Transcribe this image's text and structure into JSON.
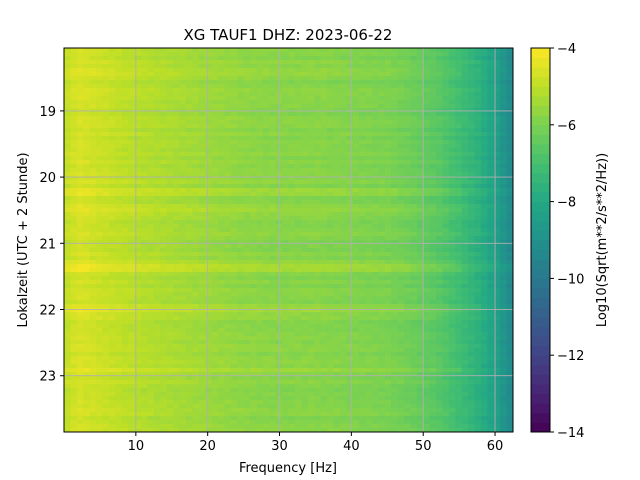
{
  "chart_data": {
    "type": "heatmap",
    "title": "XG TAUF1  DHZ: 2023-06-22",
    "xlabel": "Frequency [Hz]",
    "ylabel": "Lokalzeit (UTC + 2 Stunde)",
    "xlim": [
      0,
      62.5
    ],
    "ylim": [
      18.05,
      23.85
    ],
    "y_inverted": true,
    "x_ticks": [
      10,
      20,
      30,
      40,
      50,
      60
    ],
    "y_ticks": [
      19,
      20,
      21,
      22,
      23
    ],
    "grid": true,
    "colormap": "viridis",
    "colorbar": {
      "label": "Log10(Sqrt(m**2/s**2/Hz))",
      "range": [
        -14,
        -4
      ],
      "ticks": [
        -14,
        -12,
        -10,
        -8,
        -6,
        -4
      ]
    },
    "value_profile": {
      "frequencies": [
        0,
        2,
        5,
        10,
        15,
        20,
        25,
        30,
        35,
        40,
        45,
        48,
        50,
        52,
        55,
        58,
        60,
        62.5
      ],
      "values": [
        -5.0,
        -4.6,
        -4.8,
        -5.1,
        -5.3,
        -5.5,
        -5.7,
        -5.8,
        -5.8,
        -5.9,
        -6.0,
        -6.2,
        -6.4,
        -6.6,
        -7.1,
        -7.7,
        -8.3,
        -9.4
      ]
    },
    "bright_bands_time": [
      18.43,
      20.22,
      20.5,
      21.32,
      21.4,
      22.0,
      22.9
    ]
  }
}
